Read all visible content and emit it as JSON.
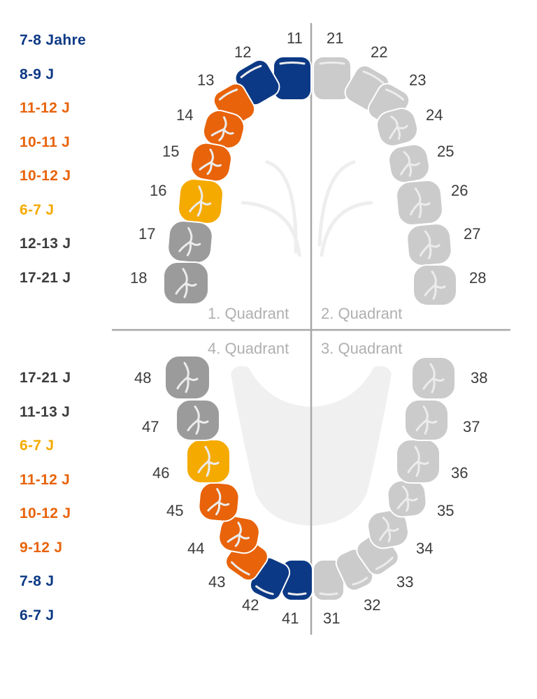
{
  "colors": {
    "blue": "#0c3985",
    "orange": "#e8630a",
    "yellow": "#f5aa00",
    "dark_gray": "#9b9b9b",
    "light_gray": "#cbcbcb",
    "text_dark": "#3c3c3c",
    "quadrant_text": "#b0b0b0"
  },
  "upper_ages": [
    {
      "label": "7-8 Jahre",
      "color": "blue"
    },
    {
      "label": "8-9 J",
      "color": "blue"
    },
    {
      "label": "11-12 J",
      "color": "orange"
    },
    {
      "label": "10-11 J",
      "color": "orange"
    },
    {
      "label": "10-12 J",
      "color": "orange"
    },
    {
      "label": "6-7 J",
      "color": "yellow"
    },
    {
      "label": "12-13 J",
      "color": "text_dark"
    },
    {
      "label": "17-21 J",
      "color": "text_dark"
    }
  ],
  "lower_ages": [
    {
      "label": "17-21 J",
      "color": "text_dark"
    },
    {
      "label": "11-13 J",
      "color": "text_dark"
    },
    {
      "label": "6-7 J",
      "color": "yellow"
    },
    {
      "label": "11-12 J",
      "color": "orange"
    },
    {
      "label": "10-12 J",
      "color": "orange"
    },
    {
      "label": "9-12 J",
      "color": "orange"
    },
    {
      "label": "7-8 J",
      "color": "blue"
    },
    {
      "label": "6-7 J",
      "color": "blue"
    }
  ],
  "quadrants": [
    "1. Quadrant",
    "2. Quadrant",
    "3. Quadrant",
    "4. Quadrant"
  ],
  "teeth": [
    {
      "number": "11",
      "color": "blue",
      "type": "incisor"
    },
    {
      "number": "12",
      "color": "blue",
      "type": "incisor"
    },
    {
      "number": "13",
      "color": "orange",
      "type": "canine"
    },
    {
      "number": "14",
      "color": "orange",
      "type": "premolar"
    },
    {
      "number": "15",
      "color": "orange",
      "type": "premolar"
    },
    {
      "number": "16",
      "color": "yellow",
      "type": "molar"
    },
    {
      "number": "17",
      "color": "dark_gray",
      "type": "molar"
    },
    {
      "number": "18",
      "color": "dark_gray",
      "type": "molar"
    },
    {
      "number": "21",
      "color": "light_gray",
      "type": "incisor"
    },
    {
      "number": "22",
      "color": "light_gray",
      "type": "incisor"
    },
    {
      "number": "23",
      "color": "light_gray",
      "type": "canine"
    },
    {
      "number": "24",
      "color": "light_gray",
      "type": "premolar"
    },
    {
      "number": "25",
      "color": "light_gray",
      "type": "premolar"
    },
    {
      "number": "26",
      "color": "light_gray",
      "type": "molar"
    },
    {
      "number": "27",
      "color": "light_gray",
      "type": "molar"
    },
    {
      "number": "28",
      "color": "light_gray",
      "type": "molar"
    },
    {
      "number": "31",
      "color": "light_gray",
      "type": "incisor"
    },
    {
      "number": "32",
      "color": "light_gray",
      "type": "incisor"
    },
    {
      "number": "33",
      "color": "light_gray",
      "type": "canine"
    },
    {
      "number": "34",
      "color": "light_gray",
      "type": "premolar"
    },
    {
      "number": "35",
      "color": "light_gray",
      "type": "premolar"
    },
    {
      "number": "36",
      "color": "light_gray",
      "type": "molar"
    },
    {
      "number": "37",
      "color": "light_gray",
      "type": "molar"
    },
    {
      "number": "38",
      "color": "light_gray",
      "type": "molar"
    },
    {
      "number": "41",
      "color": "blue",
      "type": "incisor"
    },
    {
      "number": "42",
      "color": "blue",
      "type": "incisor"
    },
    {
      "number": "43",
      "color": "orange",
      "type": "canine"
    },
    {
      "number": "44",
      "color": "orange",
      "type": "premolar"
    },
    {
      "number": "45",
      "color": "orange",
      "type": "premolar"
    },
    {
      "number": "46",
      "color": "yellow",
      "type": "molar"
    },
    {
      "number": "47",
      "color": "dark_gray",
      "type": "molar"
    },
    {
      "number": "48",
      "color": "dark_gray",
      "type": "molar"
    }
  ]
}
